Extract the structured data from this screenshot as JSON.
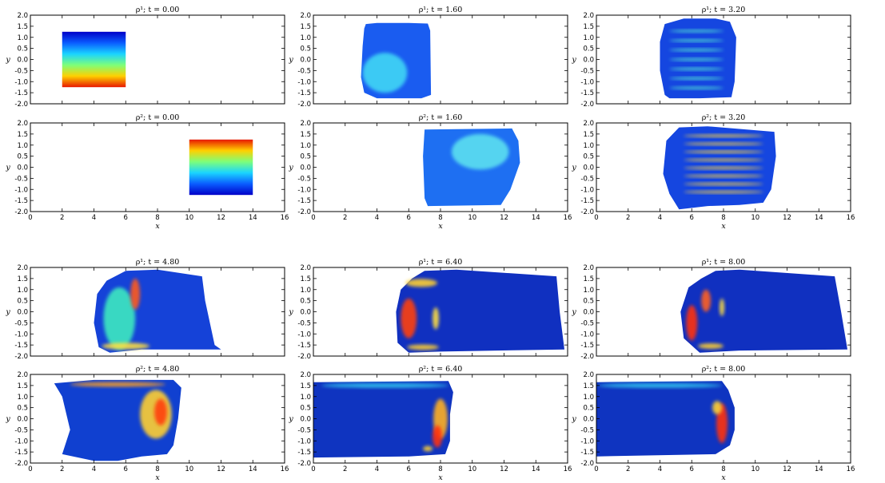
{
  "chart_data": [
    {
      "type": "heatmap",
      "title": "ρ¹; t = 0.00",
      "xlabel": "",
      "ylabel": "y",
      "xlim": [
        0,
        16
      ],
      "ylim": [
        -2,
        2
      ],
      "show_xticks": false,
      "blobs": [
        {
          "shape": "rect",
          "x0": 2,
          "x1": 6,
          "y0": -1.25,
          "y1": 1.25,
          "gradient": "top-blue-bottom-red"
        }
      ]
    },
    {
      "type": "heatmap",
      "title": "ρ¹; t = 1.60",
      "xlabel": "",
      "ylabel": "y",
      "xlim": [
        0,
        16
      ],
      "ylim": [
        -2,
        2
      ],
      "show_xticks": false,
      "blobs": [
        {
          "shape": "poly",
          "fill": "#1a5cf0",
          "pts": [
            [
              3.3,
              1.6
            ],
            [
              4.0,
              1.65
            ],
            [
              6.0,
              1.65
            ],
            [
              7.2,
              1.62
            ],
            [
              7.35,
              1.3
            ],
            [
              7.4,
              -1.6
            ],
            [
              6.8,
              -1.75
            ],
            [
              4.0,
              -1.75
            ],
            [
              3.2,
              -1.5
            ],
            [
              3.0,
              -0.8
            ],
            [
              3.1,
              0.6
            ],
            [
              3.2,
              1.4
            ]
          ]
        },
        {
          "shape": "spot",
          "cx": 4.5,
          "cy": -0.6,
          "rx": 1.4,
          "ry": 0.9,
          "color": "#3fd6f5"
        }
      ]
    },
    {
      "type": "heatmap",
      "title": "ρ¹; t = 3.20",
      "xlabel": "",
      "ylabel": "y",
      "xlim": [
        0,
        16
      ],
      "ylim": [
        -2,
        2
      ],
      "show_xticks": false,
      "blobs": [
        {
          "shape": "poly",
          "fill": "#1546e0",
          "pts": [
            [
              4.3,
              1.6
            ],
            [
              5.5,
              1.85
            ],
            [
              7.5,
              1.85
            ],
            [
              8.4,
              1.7
            ],
            [
              8.8,
              1.0
            ],
            [
              8.7,
              -1.0
            ],
            [
              8.5,
              -1.7
            ],
            [
              6.5,
              -1.75
            ],
            [
              4.6,
              -1.75
            ],
            [
              4.3,
              -1.6
            ],
            [
              4.0,
              -0.5
            ],
            [
              4.0,
              0.8
            ]
          ]
        },
        {
          "shape": "bands",
          "x0": 4.6,
          "x1": 8.0,
          "y0": -1.5,
          "y1": 1.5,
          "n": 7,
          "color": "#55e8d0"
        }
      ]
    },
    {
      "type": "heatmap",
      "title": "ρ²; t = 0.00",
      "xlabel": "x",
      "ylabel": "y",
      "xlim": [
        0,
        16
      ],
      "ylim": [
        -2,
        2
      ],
      "show_xticks": true,
      "blobs": [
        {
          "shape": "rect",
          "x0": 10,
          "x1": 14,
          "y0": -1.25,
          "y1": 1.25,
          "gradient": "top-red-bottom-blue"
        }
      ]
    },
    {
      "type": "heatmap",
      "title": "ρ²; t = 1.60",
      "xlabel": "x",
      "ylabel": "y",
      "xlim": [
        0,
        16
      ],
      "ylim": [
        -2,
        2
      ],
      "show_xticks": true,
      "blobs": [
        {
          "shape": "poly",
          "fill": "#1e6ff2",
          "pts": [
            [
              7.0,
              1.7
            ],
            [
              12.5,
              1.75
            ],
            [
              12.9,
              1.2
            ],
            [
              13.0,
              0.2
            ],
            [
              12.4,
              -1.0
            ],
            [
              11.8,
              -1.7
            ],
            [
              7.2,
              -1.75
            ],
            [
              7.0,
              -1.4
            ],
            [
              6.9,
              0.5
            ]
          ]
        },
        {
          "shape": "spot",
          "cx": 10.5,
          "cy": 0.7,
          "rx": 1.8,
          "ry": 0.8,
          "color": "#5ce0f0"
        }
      ]
    },
    {
      "type": "heatmap",
      "title": "ρ²; t = 3.20",
      "xlabel": "x",
      "ylabel": "y",
      "xlim": [
        0,
        16
      ],
      "ylim": [
        -2,
        2
      ],
      "show_xticks": true,
      "blobs": [
        {
          "shape": "poly",
          "fill": "#1546e0",
          "pts": [
            [
              5.2,
              1.8
            ],
            [
              7.0,
              1.85
            ],
            [
              11.2,
              1.6
            ],
            [
              11.3,
              0.5
            ],
            [
              11.0,
              -1.0
            ],
            [
              10.5,
              -1.6
            ],
            [
              9.0,
              -1.7
            ],
            [
              7.0,
              -1.75
            ],
            [
              5.2,
              -1.9
            ],
            [
              4.6,
              -1.2
            ],
            [
              4.2,
              -0.3
            ],
            [
              4.4,
              1.2
            ]
          ]
        },
        {
          "shape": "bands",
          "x0": 5.5,
          "x1": 10.5,
          "y0": -1.3,
          "y1": 1.6,
          "n": 8,
          "color": "#ffd640"
        }
      ]
    },
    {
      "type": "heatmap",
      "title": "ρ¹; t = 4.80",
      "xlabel": "",
      "ylabel": "y",
      "xlim": [
        0,
        16
      ],
      "ylim": [
        -2,
        2
      ],
      "show_xticks": false,
      "blobs": [
        {
          "shape": "poly",
          "fill": "#1542d8",
          "pts": [
            [
              6.0,
              1.85
            ],
            [
              8.0,
              1.9
            ],
            [
              10.8,
              1.6
            ],
            [
              11.0,
              0.5
            ],
            [
              11.6,
              -1.5
            ],
            [
              12.0,
              -1.7
            ],
            [
              7.0,
              -1.7
            ],
            [
              5.0,
              -1.85
            ],
            [
              4.3,
              -1.6
            ],
            [
              4.0,
              -0.5
            ],
            [
              4.2,
              0.8
            ],
            [
              4.8,
              1.4
            ]
          ]
        },
        {
          "shape": "spot",
          "cx": 5.6,
          "cy": -0.3,
          "rx": 1.0,
          "ry": 1.4,
          "color": "#3ce9c0"
        },
        {
          "shape": "spot",
          "cx": 6.6,
          "cy": 0.8,
          "rx": 0.3,
          "ry": 0.7,
          "color": "#ff5a1a"
        },
        {
          "shape": "spot",
          "cx": 6.0,
          "cy": -1.55,
          "rx": 1.5,
          "ry": 0.15,
          "color": "#ffe040"
        }
      ]
    },
    {
      "type": "heatmap",
      "title": "ρ¹; t = 6.40",
      "xlabel": "",
      "ylabel": "y",
      "xlim": [
        0,
        16
      ],
      "ylim": [
        -2,
        2
      ],
      "show_xticks": false,
      "blobs": [
        {
          "shape": "poly",
          "fill": "#1030c0",
          "pts": [
            [
              7.0,
              1.85
            ],
            [
              9.0,
              1.9
            ],
            [
              15.3,
              1.6
            ],
            [
              15.5,
              0.0
            ],
            [
              15.8,
              -1.7
            ],
            [
              8.0,
              -1.8
            ],
            [
              6.0,
              -1.85
            ],
            [
              5.3,
              -1.4
            ],
            [
              5.2,
              0.0
            ],
            [
              5.5,
              1.0
            ],
            [
              6.2,
              1.5
            ]
          ]
        },
        {
          "shape": "spot",
          "cx": 6.0,
          "cy": -0.3,
          "rx": 0.5,
          "ry": 0.9,
          "color": "#ff4010"
        },
        {
          "shape": "spot",
          "cx": 6.8,
          "cy": 1.3,
          "rx": 1.0,
          "ry": 0.18,
          "color": "#ffd030"
        },
        {
          "shape": "spot",
          "cx": 6.9,
          "cy": -1.6,
          "rx": 1.0,
          "ry": 0.12,
          "color": "#ffd030"
        },
        {
          "shape": "spot",
          "cx": 7.7,
          "cy": -0.3,
          "rx": 0.2,
          "ry": 0.5,
          "color": "#ffe040"
        }
      ]
    },
    {
      "type": "heatmap",
      "title": "ρ¹; t = 8.00",
      "xlabel": "",
      "ylabel": "y",
      "xlim": [
        0,
        16
      ],
      "ylim": [
        -2,
        2
      ],
      "show_xticks": false,
      "blobs": [
        {
          "shape": "poly",
          "fill": "#1030c0",
          "pts": [
            [
              7.5,
              1.85
            ],
            [
              9.0,
              1.9
            ],
            [
              15.0,
              1.6
            ],
            [
              15.4,
              0.0
            ],
            [
              15.8,
              -1.7
            ],
            [
              9.0,
              -1.75
            ],
            [
              6.5,
              -1.85
            ],
            [
              5.5,
              -1.2
            ],
            [
              5.3,
              0.0
            ],
            [
              5.8,
              1.1
            ],
            [
              6.6,
              1.5
            ]
          ]
        },
        {
          "shape": "spot",
          "cx": 6.0,
          "cy": -0.5,
          "rx": 0.35,
          "ry": 0.8,
          "color": "#ff3010"
        },
        {
          "shape": "spot",
          "cx": 6.9,
          "cy": 0.5,
          "rx": 0.3,
          "ry": 0.5,
          "color": "#ff6020"
        },
        {
          "shape": "spot",
          "cx": 7.2,
          "cy": -1.55,
          "rx": 0.8,
          "ry": 0.12,
          "color": "#ffd030"
        },
        {
          "shape": "spot",
          "cx": 7.9,
          "cy": 0.2,
          "rx": 0.15,
          "ry": 0.4,
          "color": "#ffe040"
        }
      ]
    },
    {
      "type": "heatmap",
      "title": "ρ²; t = 4.80",
      "xlabel": "x",
      "ylabel": "y",
      "xlim": [
        0,
        16
      ],
      "ylim": [
        -2,
        2
      ],
      "show_xticks": true,
      "blobs": [
        {
          "shape": "poly",
          "fill": "#1040d0",
          "pts": [
            [
              1.5,
              1.6
            ],
            [
              4.0,
              1.75
            ],
            [
              9.0,
              1.75
            ],
            [
              9.5,
              1.4
            ],
            [
              9.3,
              0.0
            ],
            [
              9.0,
              -1.2
            ],
            [
              8.6,
              -1.6
            ],
            [
              7.0,
              -1.7
            ],
            [
              5.5,
              -1.9
            ],
            [
              4.0,
              -1.9
            ],
            [
              2.0,
              -1.6
            ],
            [
              2.5,
              -0.5
            ],
            [
              2.0,
              1.0
            ]
          ]
        },
        {
          "shape": "spot",
          "cx": 5.5,
          "cy": 1.55,
          "rx": 3.0,
          "ry": 0.1,
          "color": "#ffa020"
        },
        {
          "shape": "spot",
          "cx": 7.9,
          "cy": 0.2,
          "rx": 1.0,
          "ry": 1.1,
          "color": "#ffcf30"
        },
        {
          "shape": "spot",
          "cx": 8.2,
          "cy": 0.3,
          "rx": 0.4,
          "ry": 0.6,
          "color": "#ff4010"
        }
      ]
    },
    {
      "type": "heatmap",
      "title": "ρ²; t = 6.40",
      "xlabel": "x",
      "ylabel": "y",
      "xlim": [
        0,
        16
      ],
      "ylim": [
        -2,
        2
      ],
      "show_xticks": true,
      "blobs": [
        {
          "shape": "poly",
          "fill": "#0f34c0",
          "pts": [
            [
              0.0,
              1.65
            ],
            [
              8.5,
              1.7
            ],
            [
              8.8,
              1.2
            ],
            [
              8.6,
              0.2
            ],
            [
              8.6,
              -1.0
            ],
            [
              8.3,
              -1.6
            ],
            [
              6.0,
              -1.7
            ],
            [
              0.0,
              -1.75
            ]
          ]
        },
        {
          "shape": "spot",
          "cx": 4.5,
          "cy": 1.5,
          "rx": 4.0,
          "ry": 0.1,
          "color": "#30c8f0"
        },
        {
          "shape": "spot",
          "cx": 8.0,
          "cy": 0.0,
          "rx": 0.45,
          "ry": 0.9,
          "color": "#ffb020"
        },
        {
          "shape": "spot",
          "cx": 7.8,
          "cy": -0.8,
          "rx": 0.3,
          "ry": 0.5,
          "color": "#ff3010"
        },
        {
          "shape": "spot",
          "cx": 7.2,
          "cy": -1.35,
          "rx": 0.3,
          "ry": 0.12,
          "color": "#ffd030"
        }
      ]
    },
    {
      "type": "heatmap",
      "title": "ρ²; t = 8.00",
      "xlabel": "x",
      "ylabel": "y",
      "xlim": [
        0,
        16
      ],
      "ylim": [
        -2,
        2
      ],
      "show_xticks": true,
      "blobs": [
        {
          "shape": "poly",
          "fill": "#0f34c0",
          "pts": [
            [
              0.0,
              1.65
            ],
            [
              7.9,
              1.7
            ],
            [
              8.3,
              1.3
            ],
            [
              8.7,
              0.5
            ],
            [
              8.7,
              -0.5
            ],
            [
              8.4,
              -1.2
            ],
            [
              7.5,
              -1.6
            ],
            [
              0.0,
              -1.7
            ]
          ]
        },
        {
          "shape": "spot",
          "cx": 4.0,
          "cy": 1.5,
          "rx": 3.9,
          "ry": 0.1,
          "color": "#30c8f0"
        },
        {
          "shape": "spot",
          "cx": 7.9,
          "cy": -0.2,
          "rx": 0.35,
          "ry": 0.9,
          "color": "#ff3010"
        },
        {
          "shape": "spot",
          "cx": 7.6,
          "cy": 0.5,
          "rx": 0.3,
          "ry": 0.3,
          "color": "#ffd030"
        }
      ]
    }
  ],
  "ticks": {
    "x": [
      "0",
      "2",
      "4",
      "6",
      "8",
      "10",
      "12",
      "14",
      "16"
    ],
    "y": [
      "2.0",
      "1.5",
      "1.0",
      "0.5",
      "0.0",
      "-0.5",
      "-1.0",
      "-1.5",
      "-2.0"
    ]
  }
}
